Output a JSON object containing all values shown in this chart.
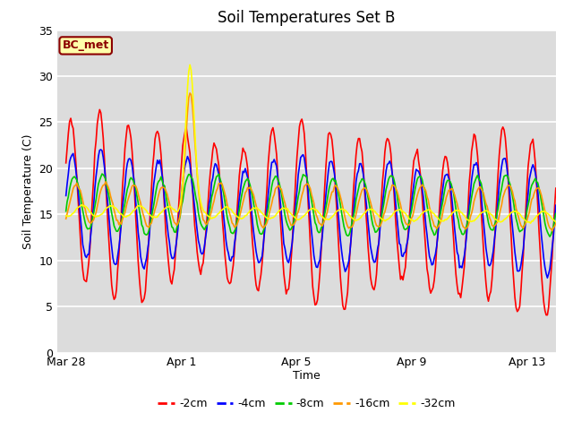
{
  "title": "Soil Temperatures Set B",
  "xlabel": "Time",
  "ylabel": "Soil Temperature (C)",
  "ylim": [
    0,
    35
  ],
  "annotation": "BC_met",
  "line_colors": [
    "#ff0000",
    "#0000ff",
    "#00cc00",
    "#ff9900",
    "#ffff00"
  ],
  "line_labels": [
    "-2cm",
    "-4cm",
    "-8cm",
    "-16cm",
    "-32cm"
  ],
  "background_color": "#dcdcdc",
  "x_ticks_labels": [
    "Mar 28",
    "Apr 1",
    "Apr 5",
    "Apr 9",
    "Apr 13"
  ],
  "x_ticks_pos": [
    0,
    4,
    8,
    12,
    16
  ],
  "title_fontsize": 12,
  "axis_label_fontsize": 9,
  "tick_fontsize": 9,
  "yticks": [
    0,
    5,
    10,
    15,
    20,
    25,
    30,
    35
  ]
}
